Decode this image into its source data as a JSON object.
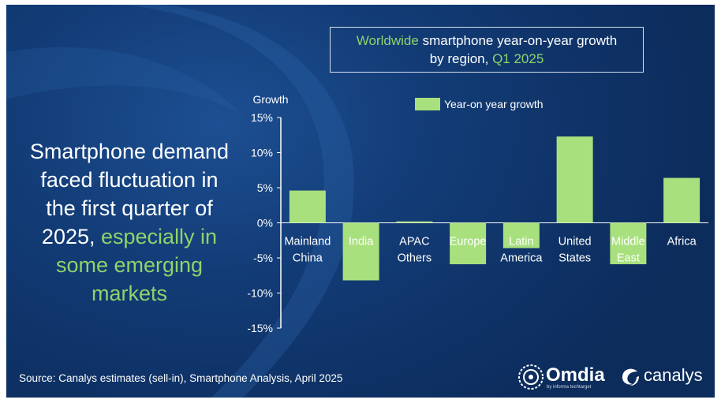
{
  "title": {
    "line1_green": "Worldwide",
    "line1_rest": " smartphone year-on-year growth",
    "line2_pre": "by region, ",
    "line2_green": "Q1 2025"
  },
  "headline": {
    "white": "Smartphone demand faced fluctuation in the first quarter of 2025, ",
    "green": "especially in some emerging markets"
  },
  "source": "Source: Canalys estimates (sell-in), Smartphone Analysis, April 2025",
  "logos": {
    "omdia": "Omdia",
    "omdia_sub": "by informa techtarget",
    "canalys": "canalys"
  },
  "colors": {
    "bar": "#a8e07d",
    "accent_green": "#8fd36b",
    "axis": "#ffffff",
    "background": "#123b75"
  },
  "chart_data": {
    "type": "bar",
    "ylabel": "Growth",
    "legend": "Year-on year growth",
    "legend_position": "top",
    "categories": [
      [
        "Mainland",
        "China"
      ],
      [
        "India"
      ],
      [
        "APAC",
        "Others"
      ],
      [
        "Europe"
      ],
      [
        "Latin",
        "America"
      ],
      [
        "United",
        "States"
      ],
      [
        "Middle",
        "East"
      ],
      [
        "Africa"
      ]
    ],
    "values": [
      4.6,
      -8.2,
      0.2,
      -5.9,
      -3.6,
      12.3,
      -5.9,
      6.4
    ],
    "ylim": [
      -15,
      15
    ],
    "yticks": [
      15,
      10,
      5,
      0,
      -5,
      -10,
      -15
    ],
    "ytick_labels": [
      "15%",
      "10%",
      "5%",
      "0%",
      "-5%",
      "-10%",
      "-15%"
    ],
    "grid": false
  }
}
